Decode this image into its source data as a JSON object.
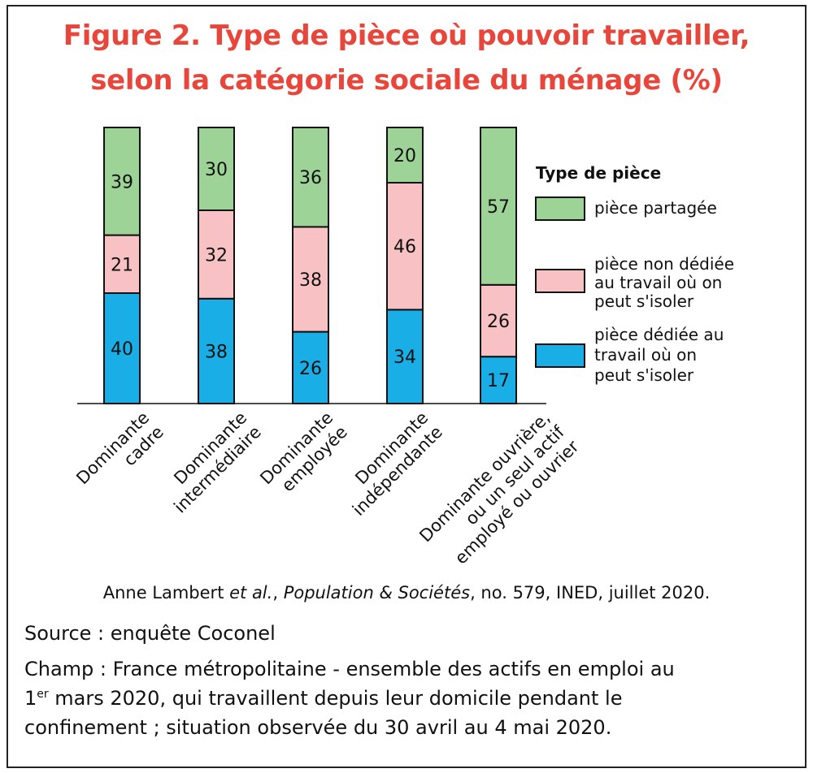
{
  "chart_data": {
    "type": "bar",
    "stacked": true,
    "title_lines": [
      "Figure 2. Type de pièce où pouvoir travailler,",
      "selon la catégorie sociale du ménage (%)"
    ],
    "categories": [
      [
        "Dominante",
        "cadre"
      ],
      [
        "Dominante",
        "intermédiaire"
      ],
      [
        "Dominante",
        "employée"
      ],
      [
        "Dominante",
        "indépendante"
      ],
      [
        "Dominante ouvrière,",
        "ou un seul actif",
        "employé ou ouvrier"
      ]
    ],
    "series": [
      {
        "name": "pièce dédiée au travail où on peut s'isoler",
        "legend_lines": [
          "pièce dédiée au",
          "travail où on",
          "peut s'isoler"
        ],
        "color": "#1aaee6",
        "values": [
          40,
          38,
          26,
          34,
          17
        ]
      },
      {
        "name": "pièce non dédiée au travail où on peut s'isoler",
        "legend_lines": [
          "pièce non dédiée",
          "au travail où on",
          "peut s'isoler"
        ],
        "color": "#f8c2c4",
        "values": [
          21,
          32,
          38,
          46,
          26
        ]
      },
      {
        "name": "pièce partagée",
        "legend_lines": [
          "pièce partagée"
        ],
        "color": "#9dd396",
        "values": [
          39,
          30,
          36,
          20,
          57
        ]
      }
    ],
    "legend_title": "Type de pièce",
    "legend_placement": "right",
    "ylim": [
      0,
      100
    ],
    "grid": false,
    "data_labels": true,
    "title_color": "#e8463b"
  },
  "citation": {
    "author": "Anne Lambert ",
    "etal": "et al.",
    "sep": ", ",
    "journal": "Population & Sociétés",
    "rest": ", no. 579, INED, juillet 2020."
  },
  "notes": {
    "source": "Source : enquête Coconel",
    "champ_1": "Champ : France métropolitaine - ensemble des actifs en emploi au",
    "champ_2_num": "1",
    "champ_2_sup": "er",
    "champ_2_rest": " mars 2020, qui travaillent depuis leur domicile pendant le",
    "champ_3": "confinement ; situation observée du 30 avril au 4 mai 2020."
  }
}
